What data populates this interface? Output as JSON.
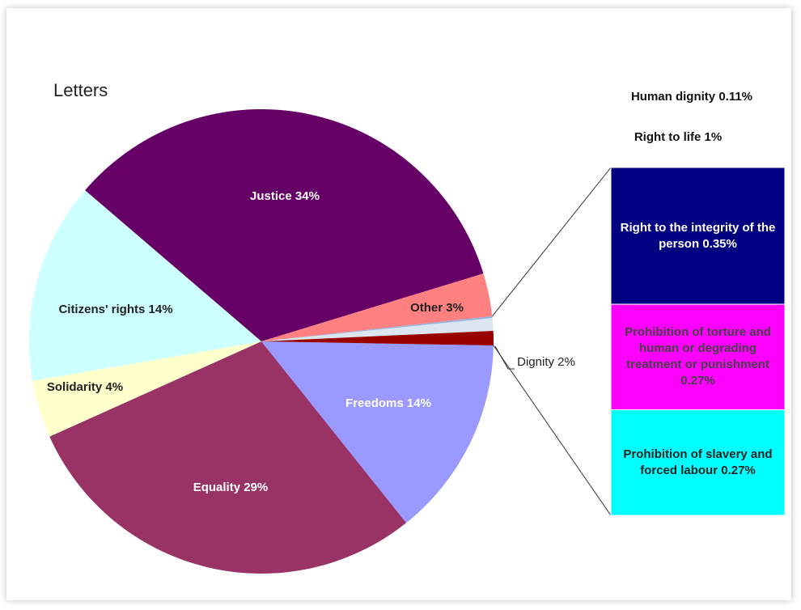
{
  "chart_data": {
    "type": "pie-of-bar",
    "title": "Letters",
    "categories": [
      "Justice",
      "Other",
      "Dignity",
      "Freedoms",
      "Equality",
      "Solidarity",
      "Citizens' rights"
    ],
    "values": [
      34,
      3,
      2,
      14,
      29,
      4,
      14
    ],
    "value_labels": [
      "34%",
      "3%",
      "2%",
      "14%",
      "29%",
      "4%",
      "14%"
    ],
    "colors": [
      "#660066",
      "#ff8080",
      "#dce6f2",
      "#9999ff",
      "#993366",
      "#ffffcc",
      "#ccffff"
    ],
    "pie_breakdown": {
      "categories": [
        "Human dignity",
        "Right to life"
      ],
      "values": [
        0.11,
        1
      ],
      "value_labels": [
        "0.11%",
        "1%"
      ],
      "colors": [
        "#8db4e2",
        "#990000"
      ]
    },
    "bar_breakdown": {
      "categories": [
        "Right to the integrity of the person",
        "Prohibition of torture and human or degrading treatment or punishment",
        "Prohibition of slavery and forced labour"
      ],
      "values": [
        0.35,
        0.27,
        0.27
      ],
      "value_labels": [
        "0.35%",
        "0.27%",
        "0.27%"
      ],
      "colors": [
        "#000080",
        "#ff00ff",
        "#00ffff"
      ]
    }
  }
}
